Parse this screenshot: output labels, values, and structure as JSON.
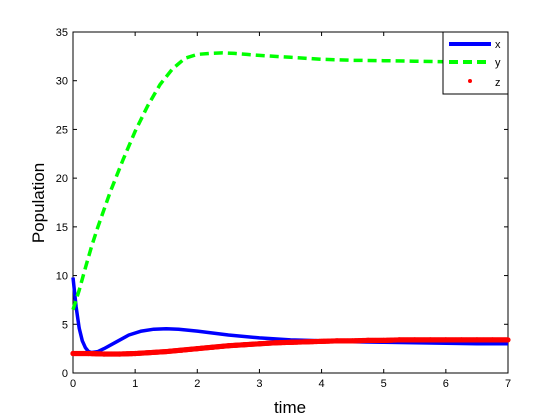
{
  "chart_data": {
    "type": "line",
    "title": "",
    "xlabel": "time",
    "ylabel": "Population",
    "xlim": [
      0,
      7
    ],
    "ylim": [
      0,
      35
    ],
    "xticks": [
      "0",
      "1",
      "2",
      "3",
      "4",
      "5",
      "6",
      "7"
    ],
    "yticks": [
      "0",
      "5",
      "10",
      "15",
      "20",
      "25",
      "30",
      "35"
    ],
    "grid": false,
    "legend_position": "top-right",
    "series": [
      {
        "name": "x",
        "style": "solid",
        "color": "#0000ff",
        "x": [
          0,
          0.05,
          0.1,
          0.15,
          0.2,
          0.25,
          0.3,
          0.4,
          0.5,
          0.7,
          0.9,
          1.1,
          1.3,
          1.5,
          1.7,
          2.0,
          2.5,
          3.0,
          3.5,
          4.0,
          4.5,
          5.0,
          5.5,
          6.0,
          6.5,
          7.0
        ],
        "y": [
          9.8,
          6.8,
          4.6,
          3.3,
          2.6,
          2.2,
          2.1,
          2.2,
          2.5,
          3.2,
          3.9,
          4.3,
          4.5,
          4.55,
          4.5,
          4.3,
          3.9,
          3.6,
          3.4,
          3.3,
          3.2,
          3.15,
          3.1,
          3.05,
          3.0,
          3.0
        ]
      },
      {
        "name": "y",
        "style": "dashed",
        "color": "#00ff00",
        "x": [
          0,
          0.1,
          0.2,
          0.3,
          0.4,
          0.5,
          0.6,
          0.8,
          1.0,
          1.2,
          1.4,
          1.6,
          1.8,
          2.0,
          2.2,
          2.4,
          2.6,
          2.8,
          3.0,
          3.5,
          4.0,
          4.5,
          5.0,
          5.5,
          6.0,
          6.5,
          7.0
        ],
        "y": [
          6.5,
          8.5,
          10.8,
          13.0,
          15.0,
          16.8,
          18.6,
          21.8,
          24.8,
          27.4,
          29.6,
          31.2,
          32.3,
          32.7,
          32.8,
          32.85,
          32.8,
          32.7,
          32.6,
          32.4,
          32.2,
          32.1,
          32.05,
          32.0,
          31.95,
          31.9,
          31.85
        ]
      },
      {
        "name": "z",
        "style": "dots",
        "color": "#ff0000",
        "x": [
          0,
          0.25,
          0.5,
          0.75,
          1.0,
          1.25,
          1.5,
          1.75,
          2.0,
          2.25,
          2.5,
          2.75,
          3.0,
          3.25,
          3.5,
          3.75,
          4.0,
          4.25,
          4.5,
          4.75,
          5.0,
          5.25,
          5.5,
          5.75,
          6.0,
          6.25,
          6.5,
          6.75,
          7.0
        ],
        "y": [
          2.0,
          2.0,
          1.95,
          1.95,
          2.0,
          2.1,
          2.2,
          2.35,
          2.5,
          2.65,
          2.8,
          2.9,
          3.0,
          3.1,
          3.15,
          3.2,
          3.25,
          3.3,
          3.3,
          3.35,
          3.35,
          3.4,
          3.4,
          3.4,
          3.4,
          3.4,
          3.4,
          3.4,
          3.4
        ]
      }
    ]
  }
}
